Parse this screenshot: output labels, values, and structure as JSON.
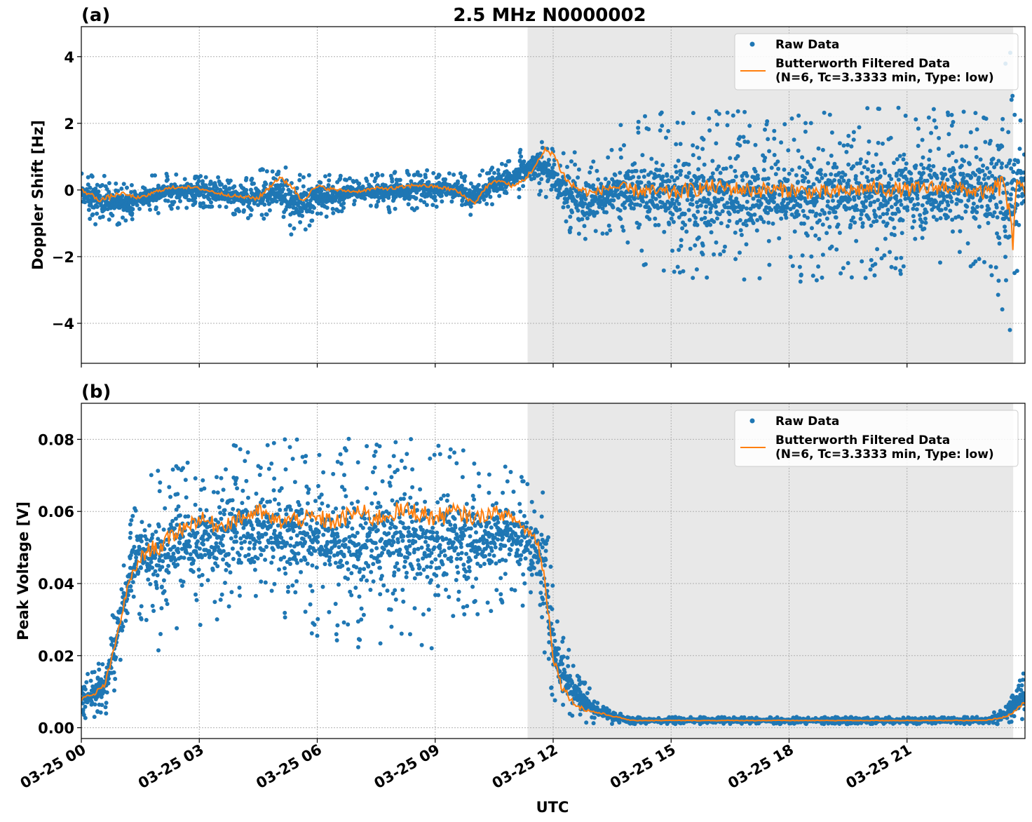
{
  "figure": {
    "title": "2.5 MHz N0000002",
    "xlabel": "UTC",
    "x_tick_labels": [
      "03-25 00",
      "03-25 03",
      "03-25 06",
      "03-25 09",
      "03-25 12",
      "03-25 15",
      "03-25 18",
      "03-25 21"
    ],
    "shaded_region_hours": [
      11.35,
      23.7
    ],
    "colors": {
      "raw": "#1f77b4",
      "filtered": "#ff7f0e",
      "shade": "#e8e8e8",
      "grid": "#b0b0b0"
    },
    "legend": {
      "raw_label": "Raw Data",
      "filtered_label_line1": "Butterworth Filtered Data",
      "filtered_label_line2": "(N=6, Tc=3.3333 min, Type: low)"
    }
  },
  "chart_data": [
    {
      "type": "scatter",
      "panel_label": "(a)",
      "ylabel": "Doppler Shift [Hz]",
      "xlim_hours": [
        0,
        24
      ],
      "ylim": [
        -5.2,
        4.9
      ],
      "y_ticks": [
        4,
        2,
        0,
        -2,
        -4
      ],
      "y_tick_labels": [
        "4",
        "2",
        "0",
        "−2",
        "−4"
      ],
      "x_tick_labels_visible": false,
      "legend_position": "top-right",
      "series": [
        {
          "name": "Raw Data",
          "style": "points",
          "envelope_x_hours": [
            0,
            0.5,
            1,
            1.5,
            2,
            3,
            4,
            5,
            5.5,
            6,
            7,
            8,
            9,
            10,
            10.5,
            11,
            11.3,
            11.8,
            12.1,
            12.4,
            13,
            13.6,
            13.7,
            15,
            18,
            21,
            23,
            23.6,
            24
          ],
          "envelope_upper": [
            0.5,
            0.6,
            0.2,
            0.3,
            0.55,
            0.5,
            0.3,
            0.9,
            0.6,
            0.5,
            0.4,
            0.6,
            0.6,
            0.5,
            0.8,
            1.0,
            1.4,
            1.7,
            1.2,
            1.2,
            1.1,
            1.4,
            2.1,
            2.4,
            2.4,
            2.5,
            2.4,
            4.4,
            2.0
          ],
          "envelope_lower": [
            -0.7,
            -1.3,
            -1.0,
            -0.8,
            -0.7,
            -0.5,
            -0.8,
            -1.0,
            -1.5,
            -0.9,
            -0.5,
            -0.7,
            -0.5,
            -0.8,
            -0.4,
            -0.3,
            -0.2,
            -0.2,
            -1.0,
            -1.4,
            -1.9,
            -1.4,
            -2.2,
            -2.6,
            -2.8,
            -2.6,
            -2.3,
            -4.7,
            -1.5
          ]
        },
        {
          "name": "Butterworth Filtered Data (N=6, Tc=3.3333 min, Type: low)",
          "style": "line",
          "x_hours": [
            0,
            0.5,
            1,
            1.5,
            2,
            2.5,
            3,
            3.5,
            4,
            4.5,
            5,
            5.3,
            5.6,
            6,
            6.5,
            7,
            7.5,
            8,
            8.5,
            9,
            9.5,
            10,
            10.3,
            10.6,
            11,
            11.3,
            11.6,
            11.8,
            12.0,
            12.2,
            12.4,
            12.7,
            13,
            13.5,
            14,
            15,
            16,
            17,
            18,
            19,
            20,
            21,
            22,
            23,
            23.5,
            23.7,
            23.8,
            24
          ],
          "y": [
            0,
            -0.3,
            -0.1,
            -0.25,
            0,
            0.1,
            0.05,
            -0.1,
            -0.2,
            -0.25,
            0.35,
            0.2,
            -0.3,
            0.1,
            0,
            -0.05,
            0.05,
            0.05,
            0.15,
            0.1,
            0,
            -0.4,
            0.1,
            0.3,
            0.1,
            0.35,
            0.8,
            1.2,
            1.1,
            0.6,
            0.2,
            0,
            -0.1,
            0.1,
            0,
            -0.1,
            0.1,
            0,
            0,
            -0.1,
            0.05,
            0,
            0.1,
            -0.1,
            0.2,
            -1.8,
            0.5,
            0
          ]
        }
      ]
    },
    {
      "type": "scatter",
      "panel_label": "(b)",
      "ylabel": "Peak Voltage [V]",
      "xlim_hours": [
        0,
        24
      ],
      "ylim": [
        -0.003,
        0.09
      ],
      "y_ticks": [
        0.08,
        0.06,
        0.04,
        0.02,
        0.0
      ],
      "y_tick_labels": [
        "0.08",
        "0.06",
        "0.04",
        "0.02",
        "0.00"
      ],
      "x_tick_labels_visible": true,
      "legend_position": "top-right",
      "series": [
        {
          "name": "Raw Data",
          "style": "points",
          "envelope_x_hours": [
            0,
            0.3,
            0.6,
            0.8,
            1.0,
            1.2,
            1.5,
            2,
            2.5,
            3,
            4,
            5,
            6,
            7,
            8,
            9,
            10,
            11,
            11.5,
            11.8,
            12.0,
            12.3,
            12.7,
            13.0,
            13.5,
            14,
            16,
            20,
            23,
            23.5,
            24
          ],
          "envelope_upper": [
            0.015,
            0.016,
            0.02,
            0.032,
            0.045,
            0.055,
            0.068,
            0.074,
            0.078,
            0.075,
            0.08,
            0.08,
            0.082,
            0.08,
            0.082,
            0.083,
            0.075,
            0.072,
            0.07,
            0.065,
            0.04,
            0.025,
            0.015,
            0.01,
            0.005,
            0.003,
            0.003,
            0.003,
            0.003,
            0.006,
            0.017
          ],
          "envelope_lower": [
            0.002,
            0.002,
            0.003,
            0.008,
            0.018,
            0.028,
            0.03,
            0.02,
            0.025,
            0.028,
            0.03,
            0.03,
            0.025,
            0.02,
            0.025,
            0.021,
            0.03,
            0.035,
            0.03,
            0.02,
            0.005,
            0.002,
            0.001,
            0.001,
            0.001,
            0.001,
            0.001,
            0.001,
            0.001,
            0.001,
            0.002
          ]
        },
        {
          "name": "Butterworth Filtered Data (N=6, Tc=3.3333 min, Type: low)",
          "style": "line",
          "x_hours": [
            0,
            0.3,
            0.6,
            0.8,
            1.0,
            1.2,
            1.5,
            1.8,
            2,
            2.5,
            3,
            3.5,
            4,
            4.5,
            5,
            5.5,
            6,
            6.5,
            7,
            7.5,
            8,
            8.5,
            9,
            9.5,
            10,
            10.5,
            11,
            11.3,
            11.6,
            11.8,
            12.0,
            12.2,
            12.5,
            12.8,
            13.2,
            13.6,
            14,
            16,
            18,
            20,
            22,
            23,
            23.5,
            23.8,
            24
          ],
          "y": [
            0.008,
            0.009,
            0.012,
            0.02,
            0.03,
            0.04,
            0.047,
            0.05,
            0.05,
            0.055,
            0.058,
            0.056,
            0.058,
            0.06,
            0.057,
            0.058,
            0.058,
            0.057,
            0.06,
            0.058,
            0.06,
            0.06,
            0.058,
            0.06,
            0.058,
            0.06,
            0.058,
            0.055,
            0.052,
            0.04,
            0.02,
            0.012,
            0.007,
            0.005,
            0.004,
            0.003,
            0.002,
            0.002,
            0.002,
            0.002,
            0.002,
            0.002,
            0.003,
            0.005,
            0.007
          ]
        }
      ]
    }
  ]
}
